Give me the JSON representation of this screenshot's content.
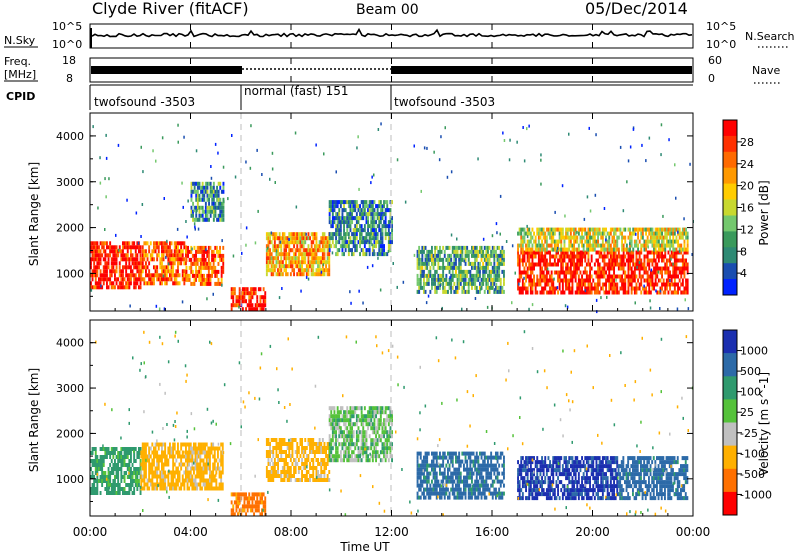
{
  "header": {
    "station": "Clyde River (fitACF)",
    "beam": "Beam 00",
    "date": "05/Dec/2014"
  },
  "summary_panels": {
    "nsky_label": "N.Sky",
    "nsky_ticks": [
      "10^5",
      "10^0"
    ],
    "nsearch_label": "N.Search",
    "nsearch_ticks": [
      "10^5",
      "10^0"
    ],
    "freq_label": "Freq.",
    "freq_unit": "[MHz]",
    "freq_ticks": [
      "18",
      "8"
    ],
    "nave_label": "Nave",
    "nave_ticks": [
      "60",
      "0"
    ],
    "cpid_label": "CPID",
    "cpid_segments": [
      {
        "label": "twofsound -3503",
        "start_hour": 0,
        "end_hour": 6
      },
      {
        "label": "normal (fast) 151",
        "start_hour": 6,
        "end_hour": 12
      },
      {
        "label": "twofsound -3503",
        "start_hour": 12,
        "end_hour": 24
      }
    ]
  },
  "axes": {
    "x_label": "Time UT",
    "x_ticks": [
      "00:00",
      "04:00",
      "08:00",
      "12:00",
      "16:00",
      "20:00",
      "00:00"
    ],
    "y_label": "Slant Range [km]",
    "y_ticks": [
      "1000",
      "2000",
      "3000",
      "4000"
    ]
  },
  "colorbars": {
    "power": {
      "label": "Power [dB]",
      "ticks": [
        "28",
        "24",
        "20",
        "16",
        "12",
        "8",
        "4"
      ],
      "colors": [
        "#ff0000",
        "#ff3000",
        "#ff6a00",
        "#ff9900",
        "#ffcc00",
        "#c8d830",
        "#74c86e",
        "#3a9a5c",
        "#2e8a74",
        "#1a4eb0",
        "#0022ff"
      ]
    },
    "velocity": {
      "label": "Velocity [m s^-1]",
      "ticks": [
        "1000",
        "500",
        "100",
        "25",
        "-25",
        "-100",
        "-500",
        "-1000"
      ],
      "colors": [
        "#1b2fb0",
        "#2c6aa8",
        "#2f9a6e",
        "#55c23a",
        "#c0c0c0",
        "#ffb000",
        "#ff7000",
        "#ff0000"
      ]
    }
  },
  "chart_data": [
    {
      "type": "heatmap",
      "title": "Power [dB]",
      "xlabel": "Time UT",
      "ylabel": "Slant Range [km]",
      "xlim": [
        0,
        24
      ],
      "ylim": [
        180,
        4500
      ],
      "zlim": [
        0,
        30
      ],
      "regions": [
        {
          "t": [
            0,
            2
          ],
          "r": [
            700,
            1700
          ],
          "dominant_power_db": 28
        },
        {
          "t": [
            2,
            3.8
          ],
          "r": [
            800,
            1700
          ],
          "dominant_power_db": 24
        },
        {
          "t": [
            3.8,
            5.3
          ],
          "r": [
            800,
            1600
          ],
          "dominant_power_db": 24
        },
        {
          "t": [
            4,
            5.3
          ],
          "r": [
            2200,
            3000
          ],
          "dominant_power_db": 8
        },
        {
          "t": [
            5.6,
            7
          ],
          "r": [
            200,
            700
          ],
          "dominant_power_db": 28
        },
        {
          "t": [
            7,
            9.5
          ],
          "r": [
            1000,
            1900
          ],
          "dominant_power_db": 20
        },
        {
          "t": [
            9.5,
            12
          ],
          "r": [
            1400,
            2600
          ],
          "dominant_power_db": 8
        },
        {
          "t": [
            13,
            16.5
          ],
          "r": [
            600,
            1600
          ],
          "dominant_power_db": 10
        },
        {
          "t": [
            17,
            23.8
          ],
          "r": [
            600,
            1500
          ],
          "dominant_power_db": 28
        },
        {
          "t": [
            17,
            23.8
          ],
          "r": [
            1500,
            2000
          ],
          "dominant_power_db": 16
        }
      ]
    },
    {
      "type": "heatmap",
      "title": "Velocity [m s^-1]",
      "xlabel": "Time UT",
      "ylabel": "Slant Range [km]",
      "xlim": [
        0,
        24
      ],
      "ylim": [
        180,
        4500
      ],
      "zlim": [
        -1000,
        1000
      ],
      "regions": [
        {
          "t": [
            0,
            2
          ],
          "r": [
            700,
            1700
          ],
          "dominant_velocity": 100
        },
        {
          "t": [
            2,
            5.3
          ],
          "r": [
            800,
            1800
          ],
          "dominant_velocity": -100
        },
        {
          "t": [
            5.6,
            7
          ],
          "r": [
            200,
            700
          ],
          "dominant_velocity": -500
        },
        {
          "t": [
            7,
            9.5
          ],
          "r": [
            1000,
            1900
          ],
          "dominant_velocity": -100
        },
        {
          "t": [
            9.5,
            12
          ],
          "r": [
            1400,
            2600
          ],
          "dominant_velocity": 25
        },
        {
          "t": [
            13,
            16.5
          ],
          "r": [
            600,
            1600
          ],
          "dominant_velocity": 500
        },
        {
          "t": [
            17,
            21
          ],
          "r": [
            600,
            1500
          ],
          "dominant_velocity": 1000
        },
        {
          "t": [
            21,
            23.8
          ],
          "r": [
            600,
            1500
          ],
          "dominant_velocity": 500
        }
      ]
    }
  ]
}
